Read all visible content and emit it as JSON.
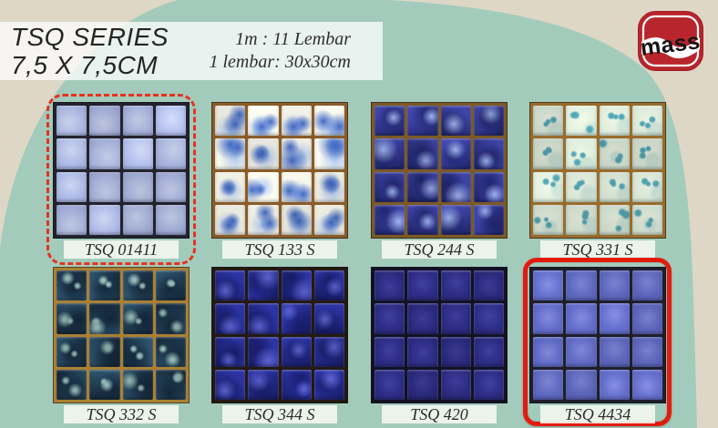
{
  "header": {
    "title_line1": "TSQ SERIES",
    "title_line2": "7,5 X 7,5CM",
    "info_line1": "1m : 11 Lembar",
    "info_line2": "1 lembar: 30x30cm"
  },
  "logo": {
    "text": "mass",
    "red": "#b9252c"
  },
  "palette": {
    "background": "#ded7c6",
    "blob": "#a3cbbc",
    "header_box": "rgba(255,255,255,0.75)",
    "label_bg": "rgba(243,247,240,0.9)",
    "highlight_dashed": "#e8311f",
    "highlight_solid": "#e31b0e"
  },
  "products": [
    {
      "code": "TSQ 01411",
      "pattern": "soft",
      "highlight": "dashed",
      "colors": {
        "grout": "#23232e",
        "light": "#c9d2ee",
        "mid": "#aab6e1",
        "dark": "#8894c8"
      }
    },
    {
      "code": "TSQ 133 S",
      "pattern": "cloud",
      "highlight": "none",
      "colors": {
        "grout": "#8a5c28",
        "light": "#f0efe4",
        "mid": "#a9c1e6",
        "dark": "#3f66bd"
      }
    },
    {
      "code": "TSQ 244 S",
      "pattern": "marble",
      "highlight": "none",
      "colors": {
        "grout": "#7c5a26",
        "light": "#96a9e2",
        "mid": "#3e44a6",
        "dark": "#1f2468"
      }
    },
    {
      "code": "TSQ 331 S",
      "pattern": "speckle",
      "highlight": "none",
      "colors": {
        "grout": "#996c2b",
        "light": "#e4ebda",
        "mid": "#c3d9cc",
        "dark": "#4f9fae"
      }
    },
    {
      "code": "TSQ 332 S",
      "pattern": "mottle",
      "highlight": "none",
      "colors": {
        "grout": "#aa8034",
        "light": "#8fb4b0",
        "mid": "#2f5570",
        "dark": "#132638"
      }
    },
    {
      "code": "TSQ 344 S",
      "pattern": "marble",
      "highlight": "none",
      "colors": {
        "grout": "#241a10",
        "light": "#5a61cb",
        "mid": "#2c34a4",
        "dark": "#171c66"
      }
    },
    {
      "code": "TSQ 420",
      "pattern": "solid",
      "highlight": "none",
      "colors": {
        "grout": "#121226",
        "light": "#3d3d9b",
        "mid": "#2b2b80",
        "dark": "#1f1f63"
      }
    },
    {
      "code": "TSQ 4434",
      "pattern": "solid",
      "highlight": "solid",
      "colors": {
        "grout": "#1f1f2c",
        "light": "#7e87d6",
        "mid": "#5f69c2",
        "dark": "#4f59ae"
      }
    }
  ]
}
